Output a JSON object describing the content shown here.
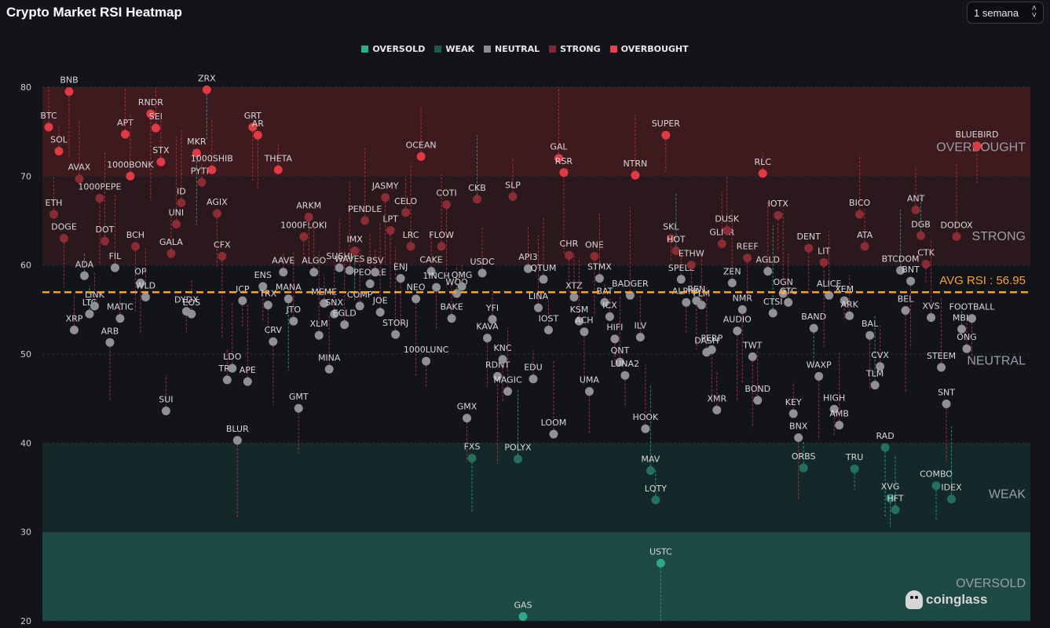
{
  "page": {
    "title": "Crypto Market RSI Heatmap",
    "range_select": "1 semana",
    "brand": "coinglass"
  },
  "legend": [
    {
      "label": "OVERSOLD",
      "color": "#2bb08f"
    },
    {
      "label": "WEAK",
      "color": "#1f5a50"
    },
    {
      "label": "NEUTRAL",
      "color": "#8a8c91"
    },
    {
      "label": "STRONG",
      "color": "#7a2a30"
    },
    {
      "label": "OVERBOUGHT",
      "color": "#e5424d"
    }
  ],
  "chart_data": {
    "type": "scatter",
    "ylim": [
      20,
      80
    ],
    "yticks": [
      20,
      30,
      40,
      50,
      60,
      70,
      80
    ],
    "grid": true,
    "zones": [
      {
        "label": "OVERBOUGHT",
        "from": 70,
        "to": 80,
        "color": "#3d1a1e"
      },
      {
        "label": "STRONG",
        "from": 60,
        "to": 70,
        "color": "#2a181c"
      },
      {
        "label": "NEUTRAL",
        "from": 40,
        "to": 60,
        "color": "#12141a"
      },
      {
        "label": "WEAK",
        "from": 30,
        "to": 40,
        "color": "#14282a"
      },
      {
        "label": "OVERSOLD",
        "from": 20,
        "to": 30,
        "color": "#1d4a44"
      }
    ],
    "avg_rsi": 56.95,
    "avg_label": "AVG RSI : 56.95",
    "colors": {
      "overbought": "#e03a45",
      "strong": "#8a2c34",
      "neutral": "#8e9096",
      "weak": "#24705f",
      "oversold": "#2fa88a",
      "avg": "#f3a23a"
    },
    "points": [
      {
        "name": "BTC",
        "rsi": 75.5
      },
      {
        "name": "ETH",
        "rsi": 65.7
      },
      {
        "name": "SOL",
        "rsi": 72.8
      },
      {
        "name": "DOGE",
        "rsi": 63.0
      },
      {
        "name": "BNB",
        "rsi": 79.5
      },
      {
        "name": "XRP",
        "rsi": 52.7
      },
      {
        "name": "AVAX",
        "rsi": 69.7
      },
      {
        "name": "ADA",
        "rsi": 58.8
      },
      {
        "name": "LTC",
        "rsi": 54.5
      },
      {
        "name": "LINK",
        "rsi": 55.4
      },
      {
        "name": "1000PEPE",
        "rsi": 67.5
      },
      {
        "name": "DOT",
        "rsi": 62.7
      },
      {
        "name": "ARB",
        "rsi": 51.3
      },
      {
        "name": "FIL",
        "rsi": 59.7
      },
      {
        "name": "MATIC",
        "rsi": 54.0
      },
      {
        "name": "APT",
        "rsi": 74.7
      },
      {
        "name": "1000BONK",
        "rsi": 70.0
      },
      {
        "name": "BCH",
        "rsi": 62.1
      },
      {
        "name": "OP",
        "rsi": 58.0
      },
      {
        "name": "WLD",
        "rsi": 56.4
      },
      {
        "name": "RNDR",
        "rsi": 77.0
      },
      {
        "name": "SEI",
        "rsi": 75.4
      },
      {
        "name": "STX",
        "rsi": 71.6
      },
      {
        "name": "SUI",
        "rsi": 43.6
      },
      {
        "name": "GALA",
        "rsi": 61.3
      },
      {
        "name": "UNI",
        "rsi": 64.6
      },
      {
        "name": "ID",
        "rsi": 67.0
      },
      {
        "name": "DYDX",
        "rsi": 54.8
      },
      {
        "name": "EOS",
        "rsi": 54.5
      },
      {
        "name": "MKR",
        "rsi": 72.6
      },
      {
        "name": "PYTH",
        "rsi": 69.3
      },
      {
        "name": "ZRX",
        "rsi": 79.7
      },
      {
        "name": "1000SHIB",
        "rsi": 70.7
      },
      {
        "name": "AGIX",
        "rsi": 65.8
      },
      {
        "name": "CFX",
        "rsi": 61.0
      },
      {
        "name": "TRB",
        "rsi": 47.1
      },
      {
        "name": "LDO",
        "rsi": 48.4
      },
      {
        "name": "BLUR",
        "rsi": 40.3
      },
      {
        "name": "ICP",
        "rsi": 56.0
      },
      {
        "name": "APE",
        "rsi": 46.9
      },
      {
        "name": "GRT",
        "rsi": 75.5
      },
      {
        "name": "AR",
        "rsi": 74.6
      },
      {
        "name": "ENS",
        "rsi": 57.6
      },
      {
        "name": "TRX",
        "rsi": 55.5
      },
      {
        "name": "CRV",
        "rsi": 51.4
      },
      {
        "name": "THETA",
        "rsi": 70.7
      },
      {
        "name": "AAVE",
        "rsi": 59.2
      },
      {
        "name": "MANA",
        "rsi": 56.2
      },
      {
        "name": "JTO",
        "rsi": 53.7
      },
      {
        "name": "GMT",
        "rsi": 43.9
      },
      {
        "name": "1000FLOKI",
        "rsi": 63.2
      },
      {
        "name": "ARKM",
        "rsi": 65.4
      },
      {
        "name": "ALGO",
        "rsi": 59.2
      },
      {
        "name": "XLM",
        "rsi": 52.1
      },
      {
        "name": "MEME",
        "rsi": 55.7
      },
      {
        "name": "MINA",
        "rsi": 48.3
      },
      {
        "name": "SNX",
        "rsi": 54.5
      },
      {
        "name": "SUSHI",
        "rsi": 59.7
      },
      {
        "name": "EGLD",
        "rsi": 53.3
      },
      {
        "name": "WAVES",
        "rsi": 59.4
      },
      {
        "name": "IMX",
        "rsi": 61.6
      },
      {
        "name": "COMP",
        "rsi": 55.4
      },
      {
        "name": "PENDLE",
        "rsi": 65.0
      },
      {
        "name": "PEOPLE",
        "rsi": 57.9
      },
      {
        "name": "BSV",
        "rsi": 59.2
      },
      {
        "name": "JOE",
        "rsi": 54.7
      },
      {
        "name": "JASMY",
        "rsi": 67.6
      },
      {
        "name": "LPT",
        "rsi": 63.9
      },
      {
        "name": "STORJ",
        "rsi": 52.2
      },
      {
        "name": "ENJ",
        "rsi": 58.5
      },
      {
        "name": "CELO",
        "rsi": 65.9
      },
      {
        "name": "LRC",
        "rsi": 62.1
      },
      {
        "name": "NEO",
        "rsi": 56.2
      },
      {
        "name": "OCEAN",
        "rsi": 72.2
      },
      {
        "name": "1000LUNC",
        "rsi": 49.2
      },
      {
        "name": "CAKE",
        "rsi": 59.3
      },
      {
        "name": "1INCH",
        "rsi": 57.5
      },
      {
        "name": "FLOW",
        "rsi": 62.1
      },
      {
        "name": "COTI",
        "rsi": 66.8
      },
      {
        "name": "BAKE",
        "rsi": 54.0
      },
      {
        "name": "WOO",
        "rsi": 56.8
      },
      {
        "name": "QMG",
        "rsi": 57.6
      },
      {
        "name": "GMX",
        "rsi": 42.8
      },
      {
        "name": "FXS",
        "rsi": 38.3
      },
      {
        "name": "CKB",
        "rsi": 67.4
      },
      {
        "name": "USDC",
        "rsi": 59.1
      },
      {
        "name": "KAVA",
        "rsi": 51.8
      },
      {
        "name": "YFI",
        "rsi": 53.9
      },
      {
        "name": "RDNT",
        "rsi": 47.5
      },
      {
        "name": "KNC",
        "rsi": 49.4
      },
      {
        "name": "MAGIC",
        "rsi": 45.8
      },
      {
        "name": "SLP",
        "rsi": 67.7
      },
      {
        "name": "POLYX",
        "rsi": 38.2
      },
      {
        "name": "GAS",
        "rsi": 20.5
      },
      {
        "name": "API3",
        "rsi": 59.6
      },
      {
        "name": "EDU",
        "rsi": 47.2
      },
      {
        "name": "LINA",
        "rsi": 55.2
      },
      {
        "name": "QTUM",
        "rsi": 58.4
      },
      {
        "name": "IOST",
        "rsi": 52.7
      },
      {
        "name": "LOOM",
        "rsi": 41.0
      },
      {
        "name": "GAL",
        "rsi": 72.0
      },
      {
        "name": "RSR",
        "rsi": 70.4
      },
      {
        "name": "CHR",
        "rsi": 61.1
      },
      {
        "name": "XTZ",
        "rsi": 56.4
      },
      {
        "name": "KSM",
        "rsi": 53.7
      },
      {
        "name": "ACH",
        "rsi": 52.5
      },
      {
        "name": "UMA",
        "rsi": 45.8
      },
      {
        "name": "ONE",
        "rsi": 61.0
      },
      {
        "name": "STMX",
        "rsi": 58.5
      },
      {
        "name": "BAT",
        "rsi": 55.8
      },
      {
        "name": "ICX",
        "rsi": 54.2
      },
      {
        "name": "HIFI",
        "rsi": 51.7
      },
      {
        "name": "QNT",
        "rsi": 49.1
      },
      {
        "name": "LUNA2",
        "rsi": 47.6
      },
      {
        "name": "BADGER",
        "rsi": 56.6
      },
      {
        "name": "NTRN",
        "rsi": 70.1
      },
      {
        "name": "ILV",
        "rsi": 51.9
      },
      {
        "name": "HOOK",
        "rsi": 41.6
      },
      {
        "name": "MAV",
        "rsi": 36.9
      },
      {
        "name": "LQTY",
        "rsi": 33.6
      },
      {
        "name": "USTC",
        "rsi": 26.5
      },
      {
        "name": "SUPER",
        "rsi": 74.6
      },
      {
        "name": "SKL",
        "rsi": 63.0
      },
      {
        "name": "HOT",
        "rsi": 61.6
      },
      {
        "name": "SPELL",
        "rsi": 58.4
      },
      {
        "name": "ALPHA",
        "rsi": 55.8
      },
      {
        "name": "ETHW",
        "rsi": 60.0
      },
      {
        "name": "REN",
        "rsi": 56.0
      },
      {
        "name": "FLM",
        "rsi": 55.5
      },
      {
        "name": "DASH",
        "rsi": 50.2
      },
      {
        "name": "PERP",
        "rsi": 50.5
      },
      {
        "name": "XMR",
        "rsi": 43.7
      },
      {
        "name": "GLMR",
        "rsi": 62.4
      },
      {
        "name": "DUSK",
        "rsi": 63.9
      },
      {
        "name": "ZEN",
        "rsi": 58.0
      },
      {
        "name": "AUDIO",
        "rsi": 52.6
      },
      {
        "name": "NMR",
        "rsi": 55.0
      },
      {
        "name": "REEF",
        "rsi": 60.8
      },
      {
        "name": "TWT",
        "rsi": 49.7
      },
      {
        "name": "BOND",
        "rsi": 44.8
      },
      {
        "name": "RLC",
        "rsi": 70.3
      },
      {
        "name": "AGLD",
        "rsi": 59.3
      },
      {
        "name": "CTSI",
        "rsi": 54.6
      },
      {
        "name": "IOTX",
        "rsi": 65.6
      },
      {
        "name": "OGN",
        "rsi": 56.8
      },
      {
        "name": "GTC",
        "rsi": 55.8
      },
      {
        "name": "KEY",
        "rsi": 43.3
      },
      {
        "name": "BNX",
        "rsi": 40.6
      },
      {
        "name": "ORBS",
        "rsi": 37.2
      },
      {
        "name": "DENT",
        "rsi": 61.9
      },
      {
        "name": "BAND",
        "rsi": 52.9
      },
      {
        "name": "WAXP",
        "rsi": 47.5
      },
      {
        "name": "LIT",
        "rsi": 60.3
      },
      {
        "name": "ALICE",
        "rsi": 56.6
      },
      {
        "name": "HIGH",
        "rsi": 43.8
      },
      {
        "name": "AMB",
        "rsi": 42.0
      },
      {
        "name": "XEM",
        "rsi": 56.0
      },
      {
        "name": "ARK",
        "rsi": 54.3
      },
      {
        "name": "TRU",
        "rsi": 37.1
      },
      {
        "name": "BICO",
        "rsi": 65.7
      },
      {
        "name": "ATA",
        "rsi": 62.1
      },
      {
        "name": "BAL",
        "rsi": 52.1
      },
      {
        "name": "TLM",
        "rsi": 46.5
      },
      {
        "name": "CVX",
        "rsi": 48.6
      },
      {
        "name": "RAD",
        "rsi": 39.5
      },
      {
        "name": "XVG",
        "rsi": 33.8
      },
      {
        "name": "HFT",
        "rsi": 32.5
      },
      {
        "name": "BTCDOM",
        "rsi": 59.4
      },
      {
        "name": "BEL",
        "rsi": 54.9
      },
      {
        "name": "BNT",
        "rsi": 58.2
      },
      {
        "name": "ANT",
        "rsi": 66.2
      },
      {
        "name": "DGB",
        "rsi": 63.3
      },
      {
        "name": "CTK",
        "rsi": 60.1
      },
      {
        "name": "XVS",
        "rsi": 54.1
      },
      {
        "name": "COMBO",
        "rsi": 35.2
      },
      {
        "name": "STEEM",
        "rsi": 48.5
      },
      {
        "name": "SNT",
        "rsi": 44.4
      },
      {
        "name": "IDEX",
        "rsi": 33.7
      },
      {
        "name": "DODOX",
        "rsi": 63.2
      },
      {
        "name": "MBL",
        "rsi": 52.8
      },
      {
        "name": "ONG",
        "rsi": 50.6
      },
      {
        "name": "FOOTBALL",
        "rsi": 54.0
      },
      {
        "name": "BLUEBIRD",
        "rsi": 73.4
      }
    ]
  }
}
